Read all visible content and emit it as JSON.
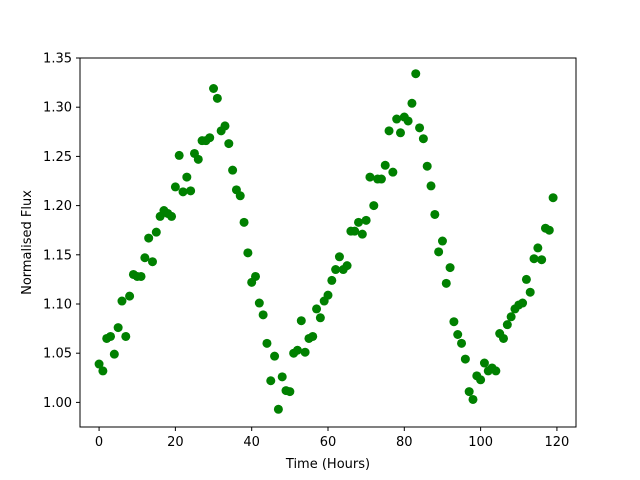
{
  "chart_data": {
    "type": "scatter",
    "title": "",
    "xlabel": "Time (Hours)",
    "ylabel": "Normalised Flux",
    "xlim": [
      -5,
      125
    ],
    "ylim": [
      0.975,
      1.35
    ],
    "xticks": [
      0,
      20,
      40,
      60,
      80,
      100,
      120
    ],
    "xtick_labels": [
      "0",
      "20",
      "40",
      "60",
      "80",
      "100",
      "120"
    ],
    "yticks": [
      1.0,
      1.05,
      1.1,
      1.15,
      1.2,
      1.25,
      1.3,
      1.35
    ],
    "ytick_labels": [
      "1.00",
      "1.05",
      "1.10",
      "1.15",
      "1.20",
      "1.25",
      "1.30",
      "1.35"
    ],
    "grid": false,
    "marker_color": "#008000",
    "series": [
      {
        "x": [
          0,
          1,
          2,
          3,
          4,
          5,
          6,
          7,
          8,
          9,
          10,
          11,
          12,
          13,
          14,
          15,
          16,
          17,
          18,
          19,
          20,
          21,
          22,
          23,
          24,
          25,
          26,
          27,
          28,
          29,
          30,
          31,
          32,
          33,
          34,
          35,
          36,
          37,
          38,
          39,
          40,
          41,
          42,
          43,
          44,
          45,
          46,
          47,
          48,
          49,
          50,
          51,
          52,
          53,
          54,
          55,
          56,
          57,
          58,
          59,
          60,
          61,
          62,
          63,
          64,
          65,
          66,
          67,
          68,
          69,
          70,
          71,
          72,
          73,
          74,
          75,
          76,
          77,
          78,
          79,
          80,
          81,
          82,
          83,
          84,
          85,
          86,
          87,
          88,
          89,
          90,
          91,
          92,
          93,
          94,
          95,
          96,
          97,
          98,
          99,
          100,
          101,
          102,
          103,
          104,
          105,
          106,
          107,
          108,
          109,
          110,
          111,
          112,
          113,
          114,
          115,
          116,
          117,
          118,
          119
        ],
        "y": [
          1.039,
          1.032,
          1.065,
          1.067,
          1.049,
          1.076,
          1.103,
          1.067,
          1.108,
          1.13,
          1.128,
          1.128,
          1.147,
          1.167,
          1.143,
          1.173,
          1.189,
          1.195,
          1.192,
          1.189,
          1.219,
          1.251,
          1.214,
          1.229,
          1.215,
          1.253,
          1.247,
          1.266,
          1.266,
          1.269,
          1.319,
          1.309,
          1.276,
          1.281,
          1.263,
          1.236,
          1.216,
          1.21,
          1.183,
          1.152,
          1.122,
          1.128,
          1.101,
          1.089,
          1.06,
          1.022,
          1.047,
          0.993,
          1.026,
          1.012,
          1.011,
          1.05,
          1.053,
          1.083,
          1.051,
          1.065,
          1.067,
          1.095,
          1.086,
          1.103,
          1.109,
          1.124,
          1.135,
          1.148,
          1.135,
          1.139,
          1.174,
          1.174,
          1.183,
          1.171,
          1.185,
          1.229,
          1.2,
          1.227,
          1.227,
          1.241,
          1.276,
          1.234,
          1.288,
          1.274,
          1.29,
          1.286,
          1.304,
          1.334,
          1.279,
          1.268,
          1.24,
          1.22,
          1.191,
          1.153,
          1.164,
          1.121,
          1.137,
          1.082,
          1.069,
          1.06,
          1.044,
          1.011,
          1.003,
          1.027,
          1.023,
          1.04,
          1.032,
          1.035,
          1.032,
          1.07,
          1.065,
          1.079,
          1.087,
          1.095,
          1.099,
          1.101,
          1.125,
          1.112,
          1.146,
          1.157,
          1.145,
          1.177,
          1.175,
          1.208
        ]
      }
    ]
  }
}
